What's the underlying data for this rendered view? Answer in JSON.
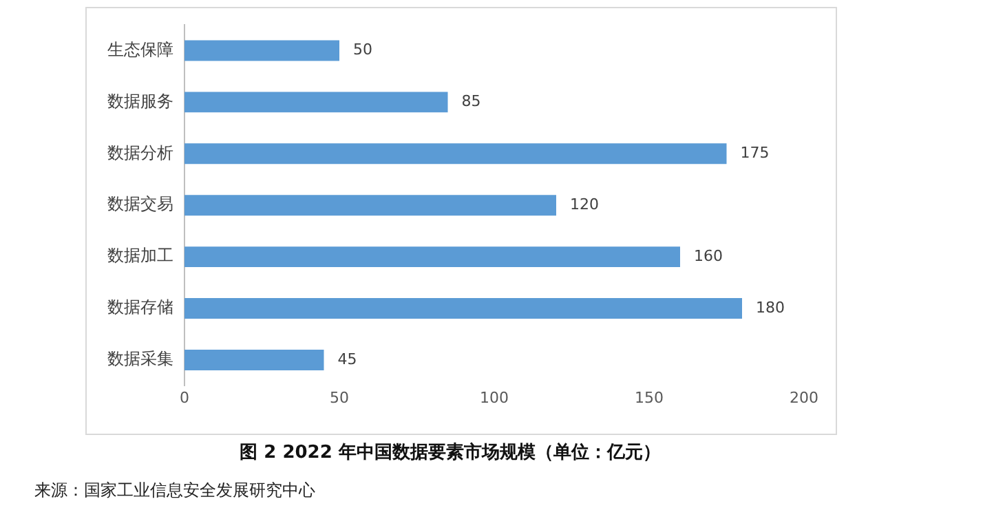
{
  "chart_data": {
    "type": "bar",
    "orientation": "horizontal",
    "title": "图 2 2022 年中国数据要素市场规模（单位：亿元）",
    "annotations": [
      "来源：国家工业信息安全发展研究中心"
    ],
    "categories": [
      "生态保障",
      "数据服务",
      "数据分析",
      "数据交易",
      "数据加工",
      "数据存储",
      "数据采集"
    ],
    "values": [
      50,
      85,
      175,
      120,
      160,
      180,
      45
    ],
    "color": "#5b9bd5",
    "xlim": [
      0,
      200
    ],
    "xticks": [
      0,
      50,
      100,
      150,
      200
    ],
    "data_labels": true,
    "grid": false,
    "legend": false
  }
}
